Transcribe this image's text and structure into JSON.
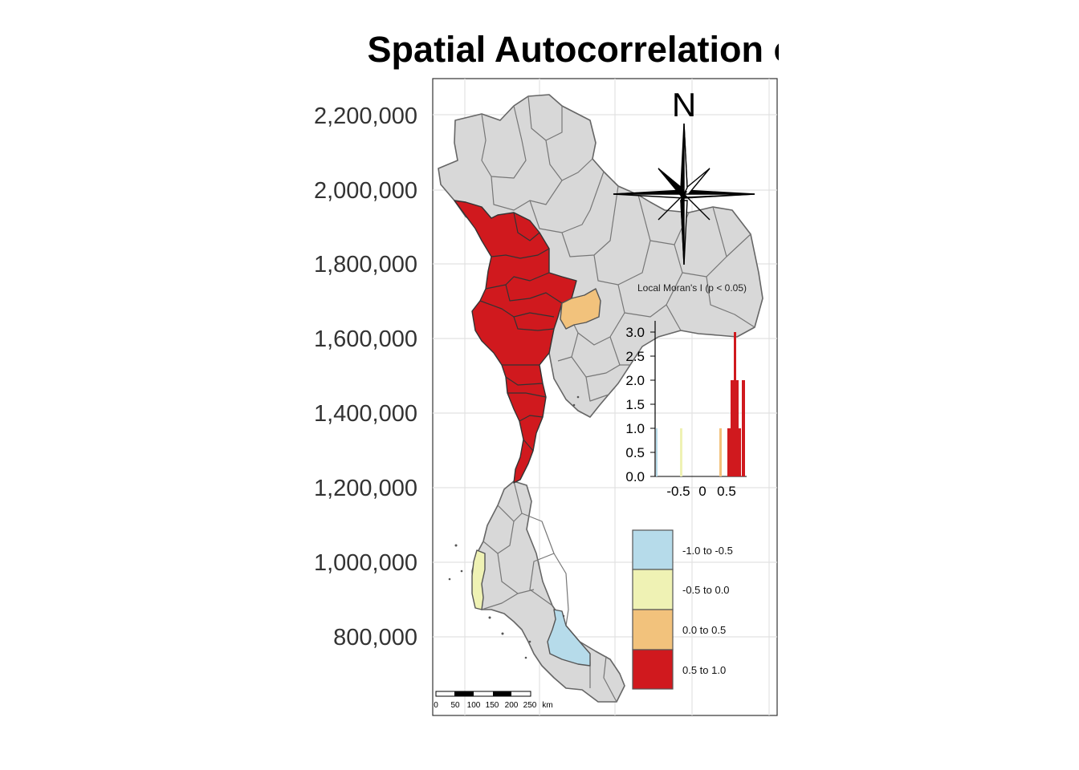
{
  "title": "Spatial Autocorrelation of S",
  "y_axis": {
    "ticks": [
      "2,200,000",
      "2,000,000",
      "1,800,000",
      "1,600,000",
      "1,400,000",
      "1,200,000",
      "1,000,000",
      "800,000"
    ]
  },
  "north_arrow": {
    "label": "N"
  },
  "histogram": {
    "title": "Local Moran's I (p < 0.05)",
    "y_ticks": [
      "3.0",
      "2.5",
      "2.0",
      "1.5",
      "1.0",
      "0.5",
      "0.0"
    ],
    "x_ticks": [
      "-0.5",
      "0",
      "0.5"
    ]
  },
  "legend": {
    "classes": [
      {
        "label": "-1.0 to -0.5",
        "color": "#b6dbea"
      },
      {
        "label": "-0.5 to 0.0",
        "color": "#eff2b4"
      },
      {
        "label": "0.0 to 0.5",
        "color": "#f2c27c"
      },
      {
        "label": "0.5 to 1.0",
        "color": "#d0191e"
      }
    ]
  },
  "scale_bar": {
    "labels": [
      "0",
      "50",
      "100",
      "150",
      "200",
      "250",
      "km"
    ]
  },
  "colors": {
    "base": "#d8d8d8",
    "boundary": "#666666",
    "high_high": "#d0191e",
    "low_high": "#f2c27c",
    "low_low": "#eff2b4",
    "negative": "#b6dbea",
    "grid": "#e4e4e4"
  }
}
